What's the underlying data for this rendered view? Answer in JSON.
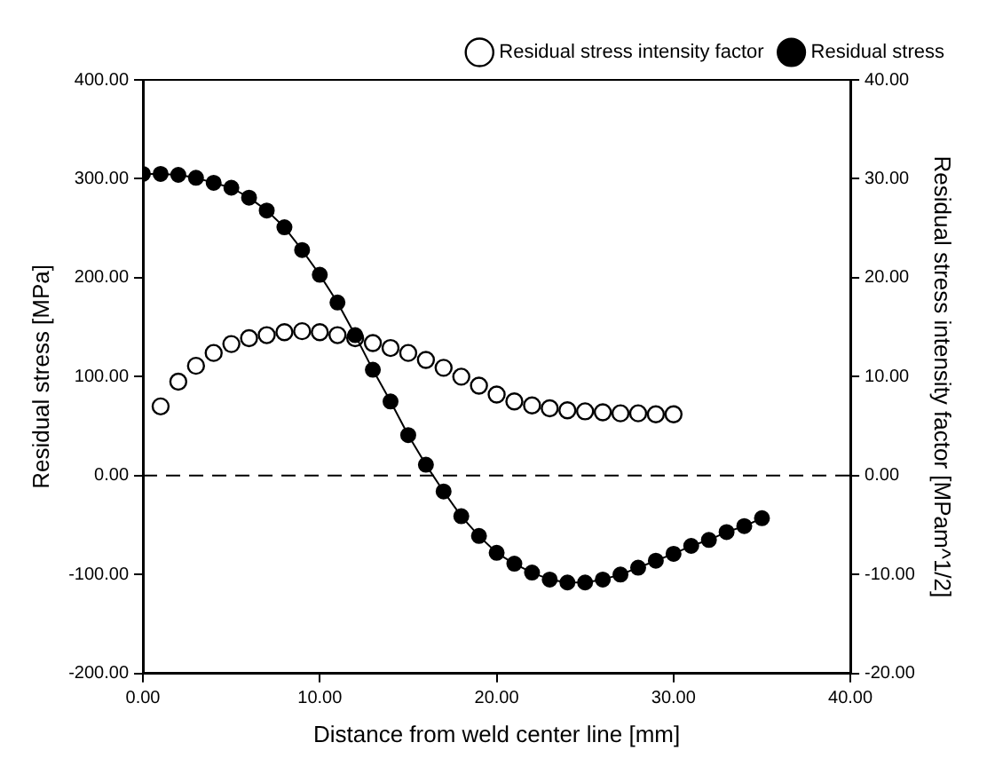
{
  "chart_data": {
    "type": "line",
    "xlabel": "Distance from weld center line [mm]",
    "ylabel": "Residual stress [MPa]",
    "y2label": "Residual stress intensity factor [MPam^1/2]",
    "xlim": [
      0,
      40
    ],
    "xticks": [
      {
        "value": 0,
        "label": "0.00"
      },
      {
        "value": 10,
        "label": "10.00"
      },
      {
        "value": 20,
        "label": "20.00"
      },
      {
        "value": 30,
        "label": "30.00"
      },
      {
        "value": 40,
        "label": "40.00"
      }
    ],
    "ylim": [
      -200,
      400
    ],
    "yticks": [
      {
        "value": -200,
        "label": "-200.00"
      },
      {
        "value": -100,
        "label": "-100.00"
      },
      {
        "value": 0,
        "label": "0.00"
      },
      {
        "value": 100,
        "label": "100.00"
      },
      {
        "value": 200,
        "label": "200.00"
      },
      {
        "value": 300,
        "label": "300.00"
      },
      {
        "value": 400,
        "label": "400.00"
      }
    ],
    "y2lim": [
      -20,
      40
    ],
    "y2ticks": [
      {
        "value": -20,
        "label": "-20.00"
      },
      {
        "value": -10,
        "label": "-10.00"
      },
      {
        "value": 0,
        "label": "0.00"
      },
      {
        "value": 10,
        "label": "10.00"
      },
      {
        "value": 20,
        "label": "20.00"
      },
      {
        "value": 30,
        "label": "30.00"
      },
      {
        "value": 40,
        "label": "40.00"
      }
    ],
    "grid": false,
    "legend": "top right",
    "marker": "circle",
    "line_style": "solid",
    "ref_lines": [
      {
        "axis": "y",
        "value": 0,
        "line_style": "dashed",
        "color": "#000000"
      }
    ],
    "series": [
      {
        "name": "Residual stress",
        "type": "line",
        "color": "#000000",
        "x": [
          0,
          1,
          2,
          3,
          4,
          5,
          6,
          7,
          8,
          9,
          10,
          11,
          12,
          13,
          14,
          15,
          16,
          17,
          18,
          19,
          20,
          21,
          22,
          23,
          24,
          25,
          26,
          27,
          28,
          29,
          30,
          31,
          32,
          33,
          34,
          35
        ],
        "values": [
          305,
          305,
          304,
          301,
          296,
          291,
          281,
          268,
          251,
          228,
          203,
          175,
          142,
          107,
          75,
          41,
          11,
          -16,
          -41,
          -61,
          -78,
          -89,
          -98,
          -105,
          -108,
          -108,
          -105,
          -100,
          -93,
          -86,
          -79,
          -71,
          -65,
          -57,
          -51,
          -43
        ]
      },
      {
        "name": "Residual stress intensity factor",
        "type": "scatter",
        "axis": "y2",
        "color": "#000000",
        "x": [
          1,
          2,
          3,
          4,
          5,
          6,
          7,
          8,
          9,
          10,
          11,
          12,
          13,
          14,
          15,
          16,
          17,
          18,
          19,
          20,
          21,
          22,
          23,
          24,
          25,
          26,
          27,
          28,
          29,
          30
        ],
        "values": [
          7.0,
          9.5,
          11.1,
          12.4,
          13.3,
          13.9,
          14.2,
          14.5,
          14.6,
          14.5,
          14.2,
          13.9,
          13.4,
          12.9,
          12.4,
          11.7,
          10.9,
          10.0,
          9.1,
          8.2,
          7.5,
          7.1,
          6.8,
          6.6,
          6.5,
          6.4,
          6.3,
          6.3,
          6.2,
          6.2
        ]
      }
    ]
  }
}
